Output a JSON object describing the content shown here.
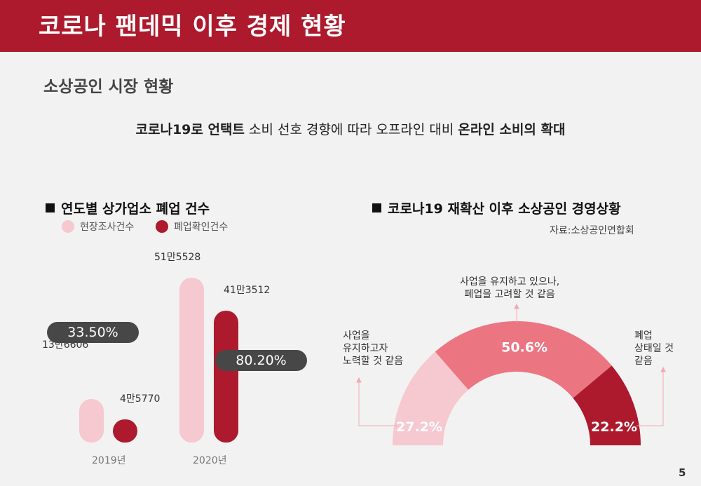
{
  "header": {
    "title": "코로나 팬데믹 이후 경제 현황"
  },
  "section_title": "소상공인 시장 현황",
  "headline": {
    "part1": "코로나19로 언택트",
    "part2": " 소비 선호 경향에 따라 오프라인 대비 ",
    "part3": "온라인 소비의 확대"
  },
  "page_number": "5",
  "colors": {
    "brand": "#ad1a2d",
    "light_pink": "#f6c8cf",
    "mid_pink": "#ec7582",
    "dark_red": "#ad1a2d",
    "pill": "#474747"
  },
  "left_chart": {
    "title": "연도별 상가업소 폐업 건수",
    "legend": [
      {
        "label": "현장조사건수",
        "color": "#f6c8cf"
      },
      {
        "label": "폐업확인건수",
        "color": "#ad1a2d"
      }
    ],
    "pills": [
      "33.50%",
      "80.20%"
    ]
  },
  "right_chart": {
    "title": "코로나19 재확산 이후 소상공인 경영상황",
    "source": "자료:소상공인연합회",
    "callouts": {
      "left": [
        "사업을",
        "유지하고자",
        "노력할 것 같음"
      ],
      "top": [
        "사업을 유지하고 있으나,",
        "폐업을 고려할 것 같음"
      ],
      "right": [
        "폐업",
        "상태일 것",
        "같음"
      ]
    }
  },
  "chart_data": [
    {
      "type": "bar",
      "title": "연도별 상가업소 폐업 건수",
      "categories": [
        "2019년",
        "2020년"
      ],
      "series": [
        {
          "name": "현장조사건수",
          "values": [
            136606,
            515528
          ],
          "labels": [
            "13만6606",
            "51만5528"
          ],
          "color": "#f6c8cf"
        },
        {
          "name": "폐업확인건수",
          "values": [
            45770,
            413512
          ],
          "labels": [
            "4만5770",
            "41만3512"
          ],
          "color": "#ad1a2d"
        }
      ],
      "annotations": [
        "33.50%",
        "80.20%"
      ],
      "legend_position": "top-left"
    },
    {
      "type": "pie",
      "title": "코로나19 재확산 이후 소상공인 경영상황",
      "categories": [
        "사업을 유지하고자 노력할 것 같음",
        "사업을 유지하고 있으나, 폐업을 고려할 것 같음",
        "폐업 상태일 것 같음"
      ],
      "values": [
        27.2,
        50.6,
        22.2
      ],
      "labels": [
        "27.2%",
        "50.6%",
        "22.2%"
      ],
      "colors": [
        "#f6c8cf",
        "#ec7582",
        "#ad1a2d"
      ],
      "shape": "half-donut"
    }
  ]
}
